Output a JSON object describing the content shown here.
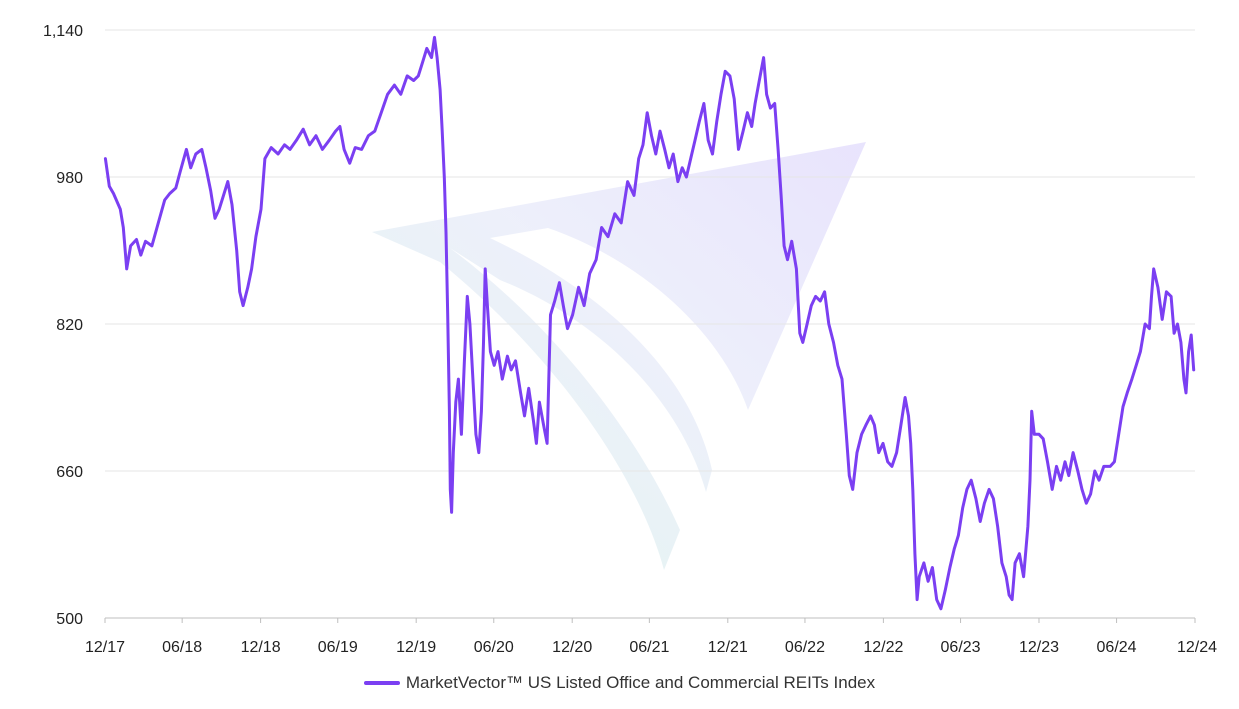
{
  "chart_data": {
    "type": "line",
    "title": "",
    "xlabel": "",
    "ylabel": "",
    "ylim": [
      500,
      1140
    ],
    "y_ticks": [
      500,
      660,
      820,
      980,
      1140
    ],
    "y_tick_labels": [
      "500",
      "660",
      "820",
      "980",
      "1,140"
    ],
    "x_range": [
      "2017-12-31",
      "2024-12-31"
    ],
    "x_ticks": [
      "2017-12-31",
      "2018-06-30",
      "2018-12-31",
      "2019-06-30",
      "2019-12-31",
      "2020-06-30",
      "2020-12-31",
      "2021-06-30",
      "2021-12-31",
      "2022-06-30",
      "2022-12-31",
      "2023-06-30",
      "2023-12-31",
      "2024-06-30",
      "2024-12-31"
    ],
    "x_tick_labels": [
      "12/17",
      "06/18",
      "12/18",
      "06/19",
      "12/19",
      "06/20",
      "12/20",
      "06/21",
      "12/21",
      "06/22",
      "12/22",
      "06/23",
      "12/23",
      "06/24",
      "12/24"
    ],
    "grid": "horizontal",
    "legend_position": "bottom-center",
    "colors": {
      "line": "#7B3FF2",
      "grid": "#e6e6e6",
      "axis": "#bfbfbf"
    },
    "watermark": "vaneck-logo",
    "series": [
      {
        "name": "MarketVector™ US Listed Office and Commercial REITs Index",
        "points": [
          [
            "2018-01-01",
            1000
          ],
          [
            "2018-01-10",
            970
          ],
          [
            "2018-01-20",
            962
          ],
          [
            "2018-02-05",
            945
          ],
          [
            "2018-02-12",
            925
          ],
          [
            "2018-02-20",
            880
          ],
          [
            "2018-03-01",
            905
          ],
          [
            "2018-03-15",
            912
          ],
          [
            "2018-03-25",
            895
          ],
          [
            "2018-04-05",
            910
          ],
          [
            "2018-04-20",
            905
          ],
          [
            "2018-05-05",
            930
          ],
          [
            "2018-05-20",
            955
          ],
          [
            "2018-06-01",
            962
          ],
          [
            "2018-06-15",
            968
          ],
          [
            "2018-06-25",
            985
          ],
          [
            "2018-07-10",
            1010
          ],
          [
            "2018-07-20",
            990
          ],
          [
            "2018-08-01",
            1005
          ],
          [
            "2018-08-15",
            1010
          ],
          [
            "2018-08-25",
            990
          ],
          [
            "2018-09-05",
            965
          ],
          [
            "2018-09-15",
            935
          ],
          [
            "2018-09-25",
            945
          ],
          [
            "2018-10-05",
            960
          ],
          [
            "2018-10-15",
            975
          ],
          [
            "2018-10-25",
            950
          ],
          [
            "2018-11-05",
            900
          ],
          [
            "2018-11-12",
            855
          ],
          [
            "2018-11-20",
            840
          ],
          [
            "2018-12-01",
            860
          ],
          [
            "2018-12-10",
            880
          ],
          [
            "2018-12-20",
            915
          ],
          [
            "2019-01-01",
            945
          ],
          [
            "2019-01-10",
            1000
          ],
          [
            "2019-01-25",
            1012
          ],
          [
            "2019-02-10",
            1005
          ],
          [
            "2019-02-25",
            1015
          ],
          [
            "2019-03-10",
            1010
          ],
          [
            "2019-03-25",
            1020
          ],
          [
            "2019-04-10",
            1032
          ],
          [
            "2019-04-25",
            1015
          ],
          [
            "2019-05-10",
            1025
          ],
          [
            "2019-05-25",
            1010
          ],
          [
            "2019-06-10",
            1020
          ],
          [
            "2019-06-25",
            1030
          ],
          [
            "2019-07-05",
            1035
          ],
          [
            "2019-07-15",
            1010
          ],
          [
            "2019-07-28",
            995
          ],
          [
            "2019-08-10",
            1012
          ],
          [
            "2019-08-25",
            1010
          ],
          [
            "2019-09-10",
            1025
          ],
          [
            "2019-09-25",
            1030
          ],
          [
            "2019-10-10",
            1050
          ],
          [
            "2019-10-25",
            1070
          ],
          [
            "2019-11-10",
            1080
          ],
          [
            "2019-11-25",
            1070
          ],
          [
            "2019-12-10",
            1090
          ],
          [
            "2019-12-25",
            1085
          ],
          [
            "2020-01-05",
            1090
          ],
          [
            "2020-01-15",
            1105
          ],
          [
            "2020-01-25",
            1120
          ],
          [
            "2020-02-05",
            1110
          ],
          [
            "2020-02-12",
            1132
          ],
          [
            "2020-02-18",
            1110
          ],
          [
            "2020-02-25",
            1075
          ],
          [
            "2020-03-01",
            1030
          ],
          [
            "2020-03-06",
            980
          ],
          [
            "2020-03-10",
            920
          ],
          [
            "2020-03-14",
            830
          ],
          [
            "2020-03-18",
            725
          ],
          [
            "2020-03-20",
            640
          ],
          [
            "2020-03-23",
            615
          ],
          [
            "2020-03-27",
            680
          ],
          [
            "2020-04-02",
            735
          ],
          [
            "2020-04-08",
            760
          ],
          [
            "2020-04-15",
            700
          ],
          [
            "2020-04-22",
            780
          ],
          [
            "2020-04-29",
            850
          ],
          [
            "2020-05-05",
            820
          ],
          [
            "2020-05-12",
            760
          ],
          [
            "2020-05-19",
            700
          ],
          [
            "2020-05-26",
            680
          ],
          [
            "2020-06-01",
            725
          ],
          [
            "2020-06-06",
            800
          ],
          [
            "2020-06-10",
            880
          ],
          [
            "2020-06-15",
            840
          ],
          [
            "2020-06-22",
            790
          ],
          [
            "2020-07-01",
            775
          ],
          [
            "2020-07-10",
            790
          ],
          [
            "2020-07-20",
            760
          ],
          [
            "2020-08-01",
            785
          ],
          [
            "2020-08-10",
            770
          ],
          [
            "2020-08-20",
            780
          ],
          [
            "2020-09-01",
            745
          ],
          [
            "2020-09-10",
            720
          ],
          [
            "2020-09-20",
            750
          ],
          [
            "2020-10-01",
            715
          ],
          [
            "2020-10-08",
            690
          ],
          [
            "2020-10-15",
            735
          ],
          [
            "2020-10-25",
            710
          ],
          [
            "2020-11-02",
            690
          ],
          [
            "2020-11-06",
            760
          ],
          [
            "2020-11-10",
            830
          ],
          [
            "2020-11-20",
            845
          ],
          [
            "2020-12-01",
            865
          ],
          [
            "2020-12-10",
            840
          ],
          [
            "2020-12-20",
            815
          ],
          [
            "2021-01-01",
            830
          ],
          [
            "2021-01-15",
            860
          ],
          [
            "2021-01-28",
            840
          ],
          [
            "2021-02-10",
            875
          ],
          [
            "2021-02-25",
            890
          ],
          [
            "2021-03-10",
            925
          ],
          [
            "2021-03-25",
            915
          ],
          [
            "2021-04-10",
            940
          ],
          [
            "2021-04-25",
            930
          ],
          [
            "2021-05-10",
            975
          ],
          [
            "2021-05-25",
            960
          ],
          [
            "2021-06-05",
            1000
          ],
          [
            "2021-06-15",
            1015
          ],
          [
            "2021-06-25",
            1050
          ],
          [
            "2021-07-05",
            1025
          ],
          [
            "2021-07-15",
            1005
          ],
          [
            "2021-07-25",
            1030
          ],
          [
            "2021-08-05",
            1010
          ],
          [
            "2021-08-15",
            990
          ],
          [
            "2021-08-25",
            1005
          ],
          [
            "2021-09-05",
            975
          ],
          [
            "2021-09-15",
            990
          ],
          [
            "2021-09-25",
            980
          ],
          [
            "2021-10-05",
            1000
          ],
          [
            "2021-10-15",
            1020
          ],
          [
            "2021-10-25",
            1040
          ],
          [
            "2021-11-05",
            1060
          ],
          [
            "2021-11-15",
            1020
          ],
          [
            "2021-11-25",
            1005
          ],
          [
            "2021-12-05",
            1040
          ],
          [
            "2021-12-15",
            1070
          ],
          [
            "2021-12-25",
            1095
          ],
          [
            "2022-01-05",
            1090
          ],
          [
            "2022-01-15",
            1065
          ],
          [
            "2022-01-25",
            1010
          ],
          [
            "2022-02-05",
            1030
          ],
          [
            "2022-02-15",
            1050
          ],
          [
            "2022-02-25",
            1035
          ],
          [
            "2022-03-05",
            1060
          ],
          [
            "2022-03-15",
            1085
          ],
          [
            "2022-03-25",
            1110
          ],
          [
            "2022-04-01",
            1070
          ],
          [
            "2022-04-10",
            1055
          ],
          [
            "2022-04-20",
            1060
          ],
          [
            "2022-04-28",
            1010
          ],
          [
            "2022-05-05",
            960
          ],
          [
            "2022-05-12",
            905
          ],
          [
            "2022-05-20",
            890
          ],
          [
            "2022-05-30",
            910
          ],
          [
            "2022-06-10",
            880
          ],
          [
            "2022-06-18",
            810
          ],
          [
            "2022-06-25",
            800
          ],
          [
            "2022-07-05",
            820
          ],
          [
            "2022-07-15",
            840
          ],
          [
            "2022-07-25",
            850
          ],
          [
            "2022-08-05",
            845
          ],
          [
            "2022-08-15",
            855
          ],
          [
            "2022-08-25",
            820
          ],
          [
            "2022-09-05",
            800
          ],
          [
            "2022-09-15",
            775
          ],
          [
            "2022-09-25",
            760
          ],
          [
            "2022-10-05",
            700
          ],
          [
            "2022-10-12",
            655
          ],
          [
            "2022-10-20",
            640
          ],
          [
            "2022-10-30",
            680
          ],
          [
            "2022-11-10",
            700
          ],
          [
            "2022-11-20",
            710
          ],
          [
            "2022-12-01",
            720
          ],
          [
            "2022-12-10",
            710
          ],
          [
            "2022-12-20",
            680
          ],
          [
            "2022-12-30",
            690
          ],
          [
            "2023-01-10",
            670
          ],
          [
            "2023-01-20",
            665
          ],
          [
            "2023-01-31",
            680
          ],
          [
            "2023-02-10",
            710
          ],
          [
            "2023-02-20",
            740
          ],
          [
            "2023-02-28",
            720
          ],
          [
            "2023-03-05",
            690
          ],
          [
            "2023-03-10",
            640
          ],
          [
            "2023-03-15",
            570
          ],
          [
            "2023-03-20",
            520
          ],
          [
            "2023-03-25",
            545
          ],
          [
            "2023-04-05",
            560
          ],
          [
            "2023-04-15",
            540
          ],
          [
            "2023-04-25",
            555
          ],
          [
            "2023-05-05",
            520
          ],
          [
            "2023-05-15",
            510
          ],
          [
            "2023-05-25",
            530
          ],
          [
            "2023-06-05",
            555
          ],
          [
            "2023-06-15",
            575
          ],
          [
            "2023-06-25",
            590
          ],
          [
            "2023-07-05",
            620
          ],
          [
            "2023-07-15",
            640
          ],
          [
            "2023-07-25",
            650
          ],
          [
            "2023-08-05",
            630
          ],
          [
            "2023-08-15",
            605
          ],
          [
            "2023-08-25",
            625
          ],
          [
            "2023-09-05",
            640
          ],
          [
            "2023-09-15",
            630
          ],
          [
            "2023-09-25",
            600
          ],
          [
            "2023-10-05",
            560
          ],
          [
            "2023-10-15",
            545
          ],
          [
            "2023-10-22",
            525
          ],
          [
            "2023-10-29",
            520
          ],
          [
            "2023-11-05",
            560
          ],
          [
            "2023-11-15",
            570
          ],
          [
            "2023-11-25",
            545
          ],
          [
            "2023-12-05",
            600
          ],
          [
            "2023-12-10",
            650
          ],
          [
            "2023-12-14",
            725
          ],
          [
            "2023-12-20",
            700
          ],
          [
            "2023-12-31",
            700
          ],
          [
            "2024-01-10",
            695
          ],
          [
            "2024-01-20",
            670
          ],
          [
            "2024-01-31",
            640
          ],
          [
            "2024-02-10",
            665
          ],
          [
            "2024-02-20",
            650
          ],
          [
            "2024-03-01",
            670
          ],
          [
            "2024-03-10",
            655
          ],
          [
            "2024-03-20",
            680
          ],
          [
            "2024-03-31",
            660
          ],
          [
            "2024-04-10",
            640
          ],
          [
            "2024-04-20",
            625
          ],
          [
            "2024-04-30",
            635
          ],
          [
            "2024-05-10",
            660
          ],
          [
            "2024-05-20",
            650
          ],
          [
            "2024-05-31",
            665
          ],
          [
            "2024-06-15",
            665
          ],
          [
            "2024-06-25",
            670
          ],
          [
            "2024-07-05",
            700
          ],
          [
            "2024-07-15",
            730
          ],
          [
            "2024-07-25",
            745
          ],
          [
            "2024-08-05",
            760
          ],
          [
            "2024-08-15",
            775
          ],
          [
            "2024-08-25",
            790
          ],
          [
            "2024-09-05",
            820
          ],
          [
            "2024-09-15",
            815
          ],
          [
            "2024-09-20",
            850
          ],
          [
            "2024-09-25",
            880
          ],
          [
            "2024-10-05",
            860
          ],
          [
            "2024-10-15",
            825
          ],
          [
            "2024-10-25",
            855
          ],
          [
            "2024-11-05",
            850
          ],
          [
            "2024-11-12",
            810
          ],
          [
            "2024-11-20",
            820
          ],
          [
            "2024-11-28",
            800
          ],
          [
            "2024-12-05",
            760
          ],
          [
            "2024-12-10",
            745
          ],
          [
            "2024-12-16",
            790
          ],
          [
            "2024-12-22",
            808
          ],
          [
            "2024-12-28",
            770
          ]
        ]
      }
    ]
  }
}
